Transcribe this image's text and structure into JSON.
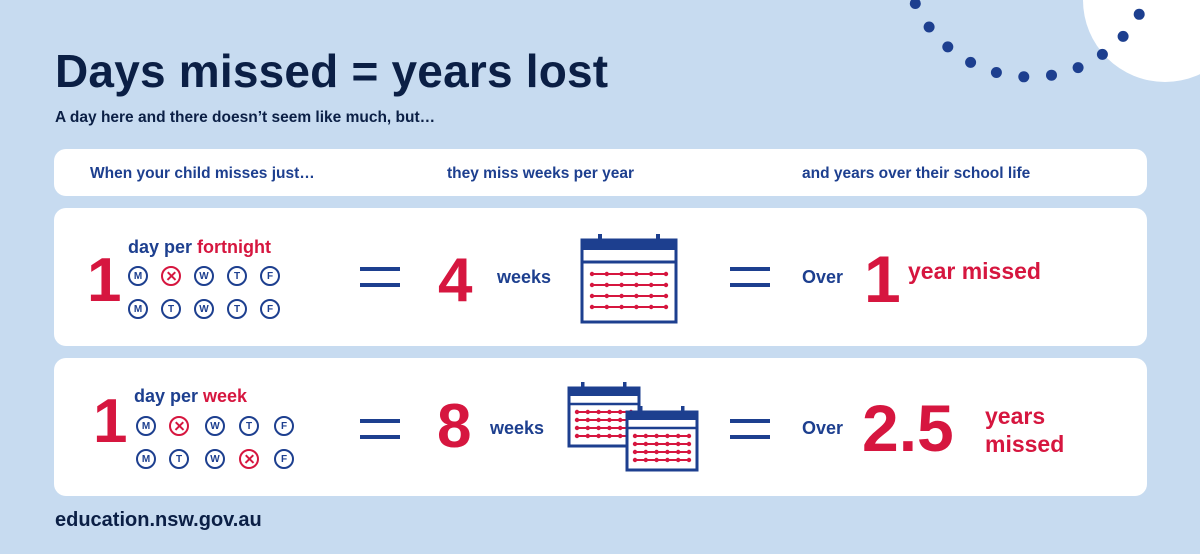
{
  "colors": {
    "background": "#c7dbf0",
    "navy": "#0b1f45",
    "blue": "#1d3f8f",
    "red": "#d6163f"
  },
  "title": "Days missed = years lost",
  "subtitle": "A day here and there doesn’t seem like much, but…",
  "header": {
    "col1": "When your child misses just…",
    "col2": "they miss weeks per year",
    "col3": "and years over their school life"
  },
  "rows": [
    {
      "count": "1",
      "day_per": "day per ",
      "period": "fortnight",
      "week1": [
        "M",
        "T",
        "W",
        "T",
        "F"
      ],
      "week2": [
        "M",
        "T",
        "W",
        "T",
        "F"
      ],
      "missed_days": "Tuesday of first week",
      "equals": "=",
      "weeks_value": "4",
      "weeks_label": "weeks",
      "calendar_icon": "calendar-icon",
      "over_label": "Over",
      "years_value": "1",
      "years_label": "year missed"
    },
    {
      "count": "1",
      "day_per": "day per ",
      "period": "week",
      "week1": [
        "M",
        "T",
        "W",
        "T",
        "F"
      ],
      "week2": [
        "M",
        "T",
        "W",
        "T",
        "F"
      ],
      "missed_days": "Tuesday of first week, Thursday of second week",
      "equals": "=",
      "weeks_value": "8",
      "weeks_label": "weeks",
      "calendar_icon": "two-calendars-icon",
      "over_label": "Over",
      "years_value": "2.5",
      "years_label_line1": "years",
      "years_label_line2": "missed"
    }
  ],
  "footer": "education.nsw.gov.au"
}
